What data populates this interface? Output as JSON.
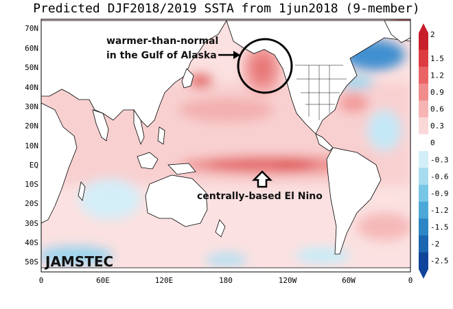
{
  "title": "Predicted DJF2018/2019 SSTA from 1jun2018 (9-member)",
  "lat_labels": [
    "70N",
    "60N",
    "50N",
    "40N",
    "30N",
    "20N",
    "10N",
    "EQ",
    "10S",
    "20S",
    "30S",
    "40S",
    "50S"
  ],
  "lon_labels": [
    "0",
    "60E",
    "120E",
    "180",
    "120W",
    "60W",
    "0"
  ],
  "colorbar": {
    "labels": [
      "2",
      "1.5",
      "1.2",
      "0.9",
      "0.6",
      "0.3",
      "0",
      "-0.3",
      "-0.6",
      "-0.9",
      "-1.2",
      "-1.5",
      "-2",
      "-2.5"
    ],
    "colors": [
      "#c81e2a",
      "#dc3c40",
      "#e96464",
      "#f08c8c",
      "#f6b4b4",
      "#fad8d8",
      "#ffffff",
      "#d2eef8",
      "#a6dcef",
      "#78c6e6",
      "#4ba8d8",
      "#2a86c4",
      "#1a66b0",
      "#10449a"
    ]
  },
  "annotations": {
    "alaska_line1": "warmer-than-normal",
    "alaska_line2": "in the Gulf of Alaska",
    "el_nino": "centrally-based El Nino"
  },
  "brand": "JAMSTEC"
}
